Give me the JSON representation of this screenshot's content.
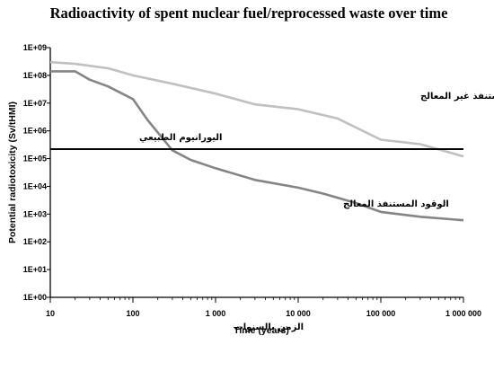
{
  "chart_data": {
    "type": "line",
    "title": "Radioactivity of spent nuclear fuel/reprocessed waste over time",
    "xlabel": "Time (years)",
    "xlabel_arabic": "الزمن بالسنوات",
    "ylabel": "Potential radiotoxicity (Sv/tHMI)",
    "x_scale": "log",
    "y_scale": "log",
    "xlim": [
      10,
      1000000
    ],
    "ylim": [
      1,
      1000000000
    ],
    "x_ticks": [
      {
        "value": 10,
        "label": "10"
      },
      {
        "value": 100,
        "label": "100"
      },
      {
        "value": 1000,
        "label": "1 000"
      },
      {
        "value": 10000,
        "label": "10 000"
      },
      {
        "value": 100000,
        "label": "100 000"
      },
      {
        "value": 1000000,
        "label": "1 000 000"
      }
    ],
    "y_ticks": [
      {
        "value": 1,
        "label": "1E+00"
      },
      {
        "value": 10,
        "label": "1E+01"
      },
      {
        "value": 100,
        "label": "1E+02"
      },
      {
        "value": 1000,
        "label": "1E+03"
      },
      {
        "value": 10000,
        "label": "1E+04"
      },
      {
        "value": 100000,
        "label": "1E+05"
      },
      {
        "value": 1000000,
        "label": "1E+06"
      },
      {
        "value": 10000000,
        "label": "1E+07"
      },
      {
        "value": 100000000,
        "label": "1E+08"
      },
      {
        "value": 1000000000,
        "label": "1E+09"
      }
    ],
    "grid": false,
    "series": [
      {
        "name": "الوقود المستنفذ غير المعالج",
        "color": "#c0c0c0",
        "x": [
          10,
          20,
          50,
          100,
          300,
          1000,
          3000,
          10000,
          30000,
          100000,
          300000,
          1000000
        ],
        "y": [
          300000000,
          260000000,
          180000000,
          100000000,
          50000000,
          22000000,
          9000000,
          6000000,
          2800000,
          480000,
          330000,
          120000
        ]
      },
      {
        "name": "الوقود المستنفذ المعالج",
        "color": "#858585",
        "x": [
          10,
          20,
          30,
          50,
          100,
          150,
          300,
          500,
          1000,
          3000,
          10000,
          20000,
          50000,
          100000,
          300000,
          1000000
        ],
        "y": [
          140000000,
          140000000,
          70000000,
          40000000,
          14000000,
          2500000,
          200000,
          90000,
          45000,
          17000,
          9000,
          5500,
          2500,
          1200,
          800,
          600
        ]
      },
      {
        "name": "اليورانيوم الطبيعي",
        "color": "#000000",
        "x": [
          10,
          1000000
        ],
        "y": [
          220000,
          220000
        ]
      }
    ]
  }
}
